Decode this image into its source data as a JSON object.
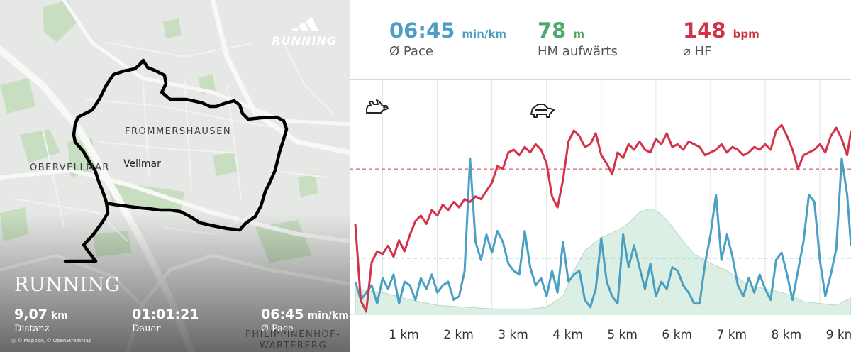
{
  "map": {
    "places": {
      "frommershausen": "FROMMERSHAUSEN",
      "obervellmar": "OBERVELLMAR",
      "vellmar": "Vellmar",
      "philippinenhof": "PHILIPPINENHOF-",
      "warteberg": "WARTEBERG"
    },
    "brand_word": "RUNNING",
    "overlay_title": "RUNNING",
    "distance": {
      "value": "9,07",
      "unit": "km",
      "label": "Distanz"
    },
    "duration": {
      "value": "01:01:21",
      "label": "Dauer"
    },
    "pace": {
      "value": "06:45",
      "unit": "min/km",
      "label": "Ø Pace"
    },
    "attribution": "© Mapbox, © OpenStreetMap",
    "icons": [
      "adidas-logo-icon",
      "mapbox-logo-icon"
    ]
  },
  "stats": {
    "pace": {
      "value": "06:45",
      "unit": "min/km",
      "label": "Ø Pace",
      "color": "#4a9fc2"
    },
    "elevation": {
      "value": "78",
      "unit": "m",
      "label": "HM aufwärts",
      "color": "#4fa96a"
    },
    "heart_rate": {
      "value": "148",
      "unit": "bpm",
      "label": "⌀ HF",
      "color": "#d33348"
    }
  },
  "chart_data": {
    "type": "line",
    "xlabel": "",
    "ylabel": "",
    "x_ticks": [
      "1 km",
      "2 km",
      "3 km",
      "4 km",
      "5 km",
      "6 km",
      "7 km",
      "8 km",
      "9 km"
    ],
    "grid": true,
    "icons": [
      "rabbit-icon",
      "turtle-icon"
    ],
    "series": [
      {
        "color": "#d33348",
        "avg_line": 148,
        "x": [
          0.0,
          0.1,
          0.2,
          0.3,
          0.4,
          0.5,
          0.6,
          0.7,
          0.8,
          0.9,
          1.0,
          1.1,
          1.2,
          1.3,
          1.4,
          1.5,
          1.6,
          1.7,
          1.8,
          1.9,
          2.0,
          2.1,
          2.2,
          2.3,
          2.4,
          2.5,
          2.6,
          2.7,
          2.8,
          2.9,
          3.0,
          3.1,
          3.2,
          3.3,
          3.4,
          3.5,
          3.6,
          3.7,
          3.8,
          3.9,
          4.0,
          4.1,
          4.2,
          4.3,
          4.4,
          4.5,
          4.6,
          4.7,
          4.8,
          4.9,
          5.0,
          5.1,
          5.2,
          5.3,
          5.4,
          5.5,
          5.6,
          5.7,
          5.8,
          5.9,
          6.0,
          6.1,
          6.2,
          6.3,
          6.4,
          6.5,
          6.6,
          6.7,
          6.8,
          6.9,
          7.0,
          7.1,
          7.2,
          7.3,
          7.4,
          7.5,
          7.6,
          7.7,
          7.8,
          7.9,
          8.0,
          8.1,
          8.2,
          8.3,
          8.4,
          8.5,
          8.6,
          8.7,
          8.8,
          8.9,
          9.0,
          9.07
        ],
        "values": [
          128,
          100,
          96,
          114,
          118,
          117,
          120,
          116,
          122,
          118,
          124,
          129,
          131,
          128,
          133,
          131,
          135,
          133,
          136,
          134,
          137,
          136,
          138,
          137,
          140,
          143,
          149,
          148,
          154,
          155,
          153,
          156,
          154,
          157,
          155,
          150,
          138,
          134,
          144,
          158,
          162,
          160,
          156,
          157,
          161,
          153,
          150,
          146,
          154,
          152,
          157,
          155,
          158,
          155,
          154,
          159,
          157,
          161,
          156,
          157,
          155,
          158,
          157,
          156,
          153,
          154,
          155,
          157,
          154,
          156,
          155,
          153,
          154,
          156,
          155,
          157,
          155,
          162,
          164,
          160,
          155,
          148,
          153,
          154,
          155,
          157,
          154,
          160,
          163,
          159,
          153,
          162
        ]
      },
      {
        "color": "#4a9fc2",
        "avg_line": "06:45",
        "x": [
          0.0,
          0.1,
          0.2,
          0.3,
          0.4,
          0.5,
          0.6,
          0.7,
          0.8,
          0.9,
          1.0,
          1.1,
          1.2,
          1.3,
          1.4,
          1.5,
          1.6,
          1.7,
          1.8,
          1.9,
          2.0,
          2.1,
          2.2,
          2.3,
          2.4,
          2.5,
          2.6,
          2.7,
          2.8,
          2.9,
          3.0,
          3.1,
          3.2,
          3.3,
          3.4,
          3.5,
          3.6,
          3.7,
          3.8,
          3.9,
          4.0,
          4.1,
          4.2,
          4.3,
          4.4,
          4.5,
          4.6,
          4.7,
          4.8,
          4.9,
          5.0,
          5.1,
          5.2,
          5.3,
          5.4,
          5.5,
          5.6,
          5.7,
          5.8,
          5.9,
          6.0,
          6.1,
          6.2,
          6.3,
          6.4,
          6.5,
          6.6,
          6.7,
          6.8,
          6.9,
          7.0,
          7.1,
          7.2,
          7.3,
          7.4,
          7.5,
          7.6,
          7.7,
          7.8,
          7.9,
          8.0,
          8.1,
          8.2,
          8.3,
          8.4,
          8.5,
          8.6,
          8.7,
          8.8,
          8.9,
          9.0,
          9.07
        ],
        "values": [
          7.4,
          7.9,
          7.7,
          7.5,
          8.0,
          7.3,
          7.6,
          7.2,
          8.0,
          7.4,
          7.5,
          7.9,
          7.3,
          7.6,
          7.2,
          7.7,
          7.5,
          7.4,
          7.9,
          7.8,
          7.1,
          4.0,
          6.3,
          6.8,
          6.1,
          6.6,
          6.0,
          6.3,
          6.9,
          7.1,
          7.2,
          6.0,
          7.0,
          7.5,
          7.3,
          7.8,
          7.1,
          7.7,
          6.3,
          7.4,
          7.2,
          7.1,
          7.9,
          8.1,
          7.6,
          6.2,
          7.4,
          7.8,
          8.0,
          6.1,
          7.0,
          6.4,
          7.0,
          7.6,
          6.9,
          7.8,
          7.4,
          7.6,
          7.0,
          7.1,
          7.5,
          7.7,
          8.0,
          8.0,
          6.9,
          6.1,
          5.0,
          6.8,
          6.1,
          6.7,
          7.5,
          7.8,
          7.3,
          7.7,
          7.2,
          7.6,
          7.9,
          6.8,
          6.6,
          7.2,
          7.9,
          7.1,
          6.3,
          5.0,
          5.2,
          6.8,
          7.8,
          7.2,
          6.5,
          4.0,
          5.0,
          6.4
        ]
      },
      {
        "type": "area",
        "color": "#dcefe4",
        "x": [
          0.0,
          0.5,
          1.0,
          1.5,
          2.0,
          2.5,
          3.0,
          3.2,
          3.5,
          3.8,
          4.0,
          4.2,
          4.5,
          4.8,
          5.0,
          5.2,
          5.4,
          5.6,
          5.8,
          6.0,
          6.2,
          6.5,
          6.8,
          7.0,
          7.2,
          7.5,
          7.8,
          8.0,
          8.2,
          8.5,
          8.8,
          9.07
        ],
        "values": [
          14,
          12,
          8,
          5,
          4,
          3,
          3,
          3,
          4,
          10,
          24,
          35,
          42,
          46,
          50,
          56,
          58,
          55,
          48,
          40,
          33,
          28,
          24,
          20,
          16,
          14,
          12,
          10,
          7,
          6,
          5,
          9
        ]
      }
    ]
  }
}
